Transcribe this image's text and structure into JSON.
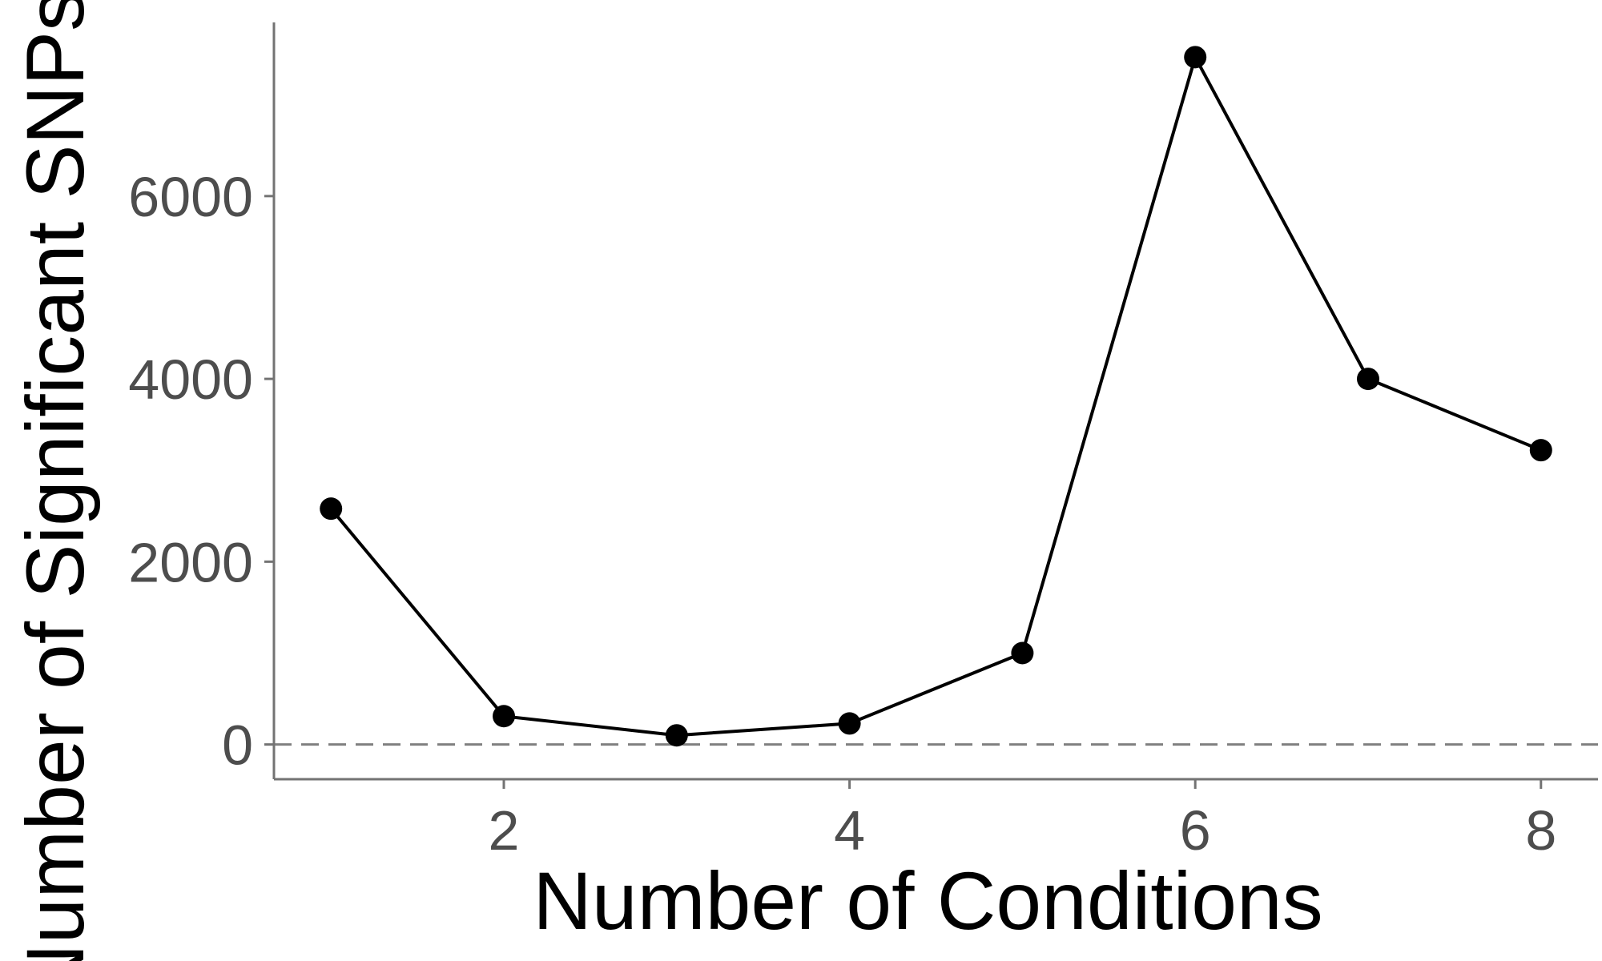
{
  "chart_data": {
    "type": "line",
    "title": "",
    "xlabel": "Number of Conditions",
    "ylabel": "Number of Significant SNPs",
    "x": [
      1,
      2,
      3,
      4,
      5,
      6,
      7,
      8
    ],
    "series": [
      {
        "values": [
          2580,
          310,
          100,
          230,
          1000,
          7520,
          4000,
          3220
        ],
        "color": "#000000"
      }
    ],
    "xlim": [
      0.67,
      8.33
    ],
    "ylim": [
      -380,
      7900
    ],
    "xticks": [
      2,
      4,
      6,
      8
    ],
    "yticks": [
      0,
      2000,
      4000,
      6000
    ],
    "reference_line": {
      "y": 0,
      "style": "dashed",
      "color": "#808080"
    },
    "grid": false,
    "legend": "none"
  }
}
